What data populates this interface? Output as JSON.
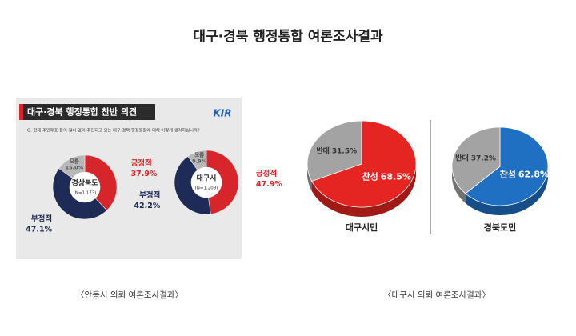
{
  "title": "대구·경북 행정통합 여론조사결과",
  "panel": {
    "header": "대구·경북 행정통합 찬반 의견",
    "logo": "KIR",
    "question": "Q. 현재 주민투표 등의 절차 없이 추진되고 있는 대구·경북 행정통합에 대해 어떻게 생각하십니까?"
  },
  "captions": [
    "〈안동시 의뢰 여론조사결과〉",
    "〈대구시 의뢰 여론조사결과〉"
  ],
  "chart_data": [
    {
      "type": "donut",
      "title": "경상북도",
      "subtitle": "(N=1,173)",
      "categories": [
        "긍정적",
        "부정적",
        "모름"
      ],
      "values": [
        37.9,
        47.1,
        15.0
      ],
      "value_labels": [
        "37.9%",
        "47.1%",
        "15.0%"
      ],
      "colors": [
        "#d7262b",
        "#1e2b57",
        "#b8b8b8"
      ]
    },
    {
      "type": "donut",
      "title": "대구시",
      "subtitle": "(N=1,209)",
      "categories": [
        "긍정적",
        "부정적",
        "모름"
      ],
      "values": [
        47.9,
        42.2,
        9.9
      ],
      "value_labels": [
        "47.9%",
        "42.2%",
        "9.9%"
      ],
      "colors": [
        "#d7262b",
        "#1e2b57",
        "#b8b8b8"
      ]
    },
    {
      "type": "pie3d",
      "title": "대구시민",
      "categories": [
        "찬성",
        "반대"
      ],
      "values": [
        68.5,
        31.5
      ],
      "value_labels": [
        "68.5%",
        "31.5%"
      ],
      "colors": [
        "#e52521",
        "#a3a3a3"
      ]
    },
    {
      "type": "pie3d",
      "title": "경북도민",
      "categories": [
        "찬성",
        "반대"
      ],
      "values": [
        62.8,
        37.2
      ],
      "value_labels": [
        "62.8%",
        "37.2%"
      ],
      "colors": [
        "#1f6fc2",
        "#a3a3a3"
      ]
    }
  ]
}
